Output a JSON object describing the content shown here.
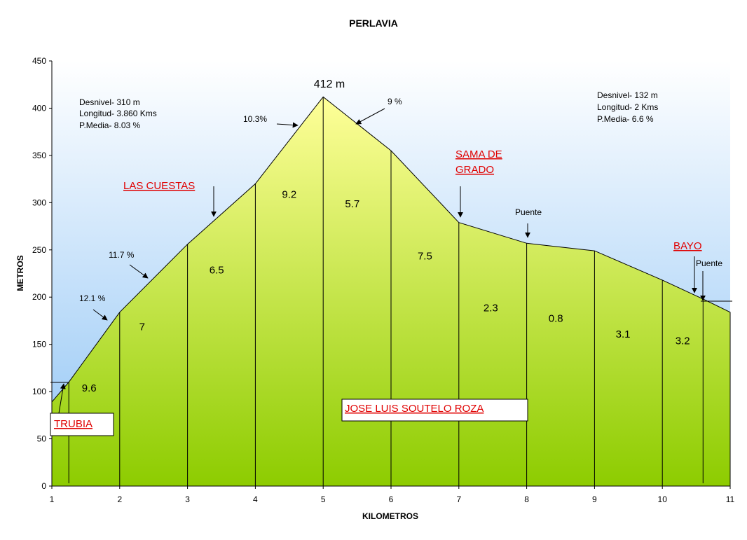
{
  "chart_data": {
    "type": "area",
    "title": "PERLAVIA",
    "xlabel": "KILOMETROS",
    "ylabel": "METROS",
    "xlim": [
      1,
      11
    ],
    "ylim": [
      0,
      450
    ],
    "x_ticks": [
      "1",
      "2",
      "3",
      "4",
      "5",
      "6",
      "7",
      "8",
      "9",
      "10",
      "11"
    ],
    "y_ticks": [
      "0",
      "50",
      "100",
      "150",
      "200",
      "250",
      "300",
      "350",
      "400",
      "450"
    ],
    "profile": [
      {
        "x": 1,
        "y": 89
      },
      {
        "x": 1.25,
        "y": 110
      },
      {
        "x": 2,
        "y": 184
      },
      {
        "x": 3,
        "y": 256
      },
      {
        "x": 4,
        "y": 320
      },
      {
        "x": 5,
        "y": 412
      },
      {
        "x": 6,
        "y": 355
      },
      {
        "x": 7,
        "y": 279
      },
      {
        "x": 8,
        "y": 257
      },
      {
        "x": 9,
        "y": 249
      },
      {
        "x": 10,
        "y": 218
      },
      {
        "x": 10.6,
        "y": 198
      },
      {
        "x": 11,
        "y": 184
      }
    ],
    "km_markers": [
      1.25,
      2,
      3,
      4,
      5,
      6,
      7,
      8,
      9,
      10,
      10.6
    ],
    "segment_gradients": [
      {
        "x": 1.55,
        "y": 100,
        "label": "9.6"
      },
      {
        "x": 2.33,
        "y": 165,
        "label": "7"
      },
      {
        "x": 3.43,
        "y": 225,
        "label": "6.5"
      },
      {
        "x": 4.5,
        "y": 305,
        "label": "9.2"
      },
      {
        "x": 5.43,
        "y": 295,
        "label": "5.7"
      },
      {
        "x": 6.5,
        "y": 240,
        "label": "7.5"
      },
      {
        "x": 7.47,
        "y": 185,
        "label": "2.3"
      },
      {
        "x": 8.43,
        "y": 174,
        "label": "0.8"
      },
      {
        "x": 9.42,
        "y": 157,
        "label": "3.1"
      },
      {
        "x": 10.3,
        "y": 150,
        "label": "3.2"
      }
    ],
    "annotations": {
      "peak": "412 m",
      "grade_10_3": "10.3%",
      "grade_9": "9 %",
      "grade_11_7": "11.7 %",
      "grade_12_1": "12.1 %",
      "puente_1": "Puente",
      "puente_2": "Puente",
      "stats_left": [
        "Desnivel- 310 m",
        "Longitud- 3.860 Kms",
        "P.Media- 8.03 %"
      ],
      "stats_right": [
        "Desnivel- 132 m",
        "Longitud- 2 Kms",
        "P.Media- 6.6 %"
      ]
    },
    "places": {
      "trubia": "TRUBIA",
      "las_cuestas": "LAS CUESTAS",
      "sama_line1": "SAMA DE",
      "sama_line2": "GRADO",
      "bayo": "BAYO",
      "author": "JOSE LUIS SOUTELO ROZA"
    },
    "grid": false,
    "colors": {
      "sky_top": "#ffffff",
      "sky_bottom": "#8fc4f5",
      "ground_top": "#ffff99",
      "ground_bottom": "#8dcc00",
      "place_label": "#e00000"
    }
  }
}
